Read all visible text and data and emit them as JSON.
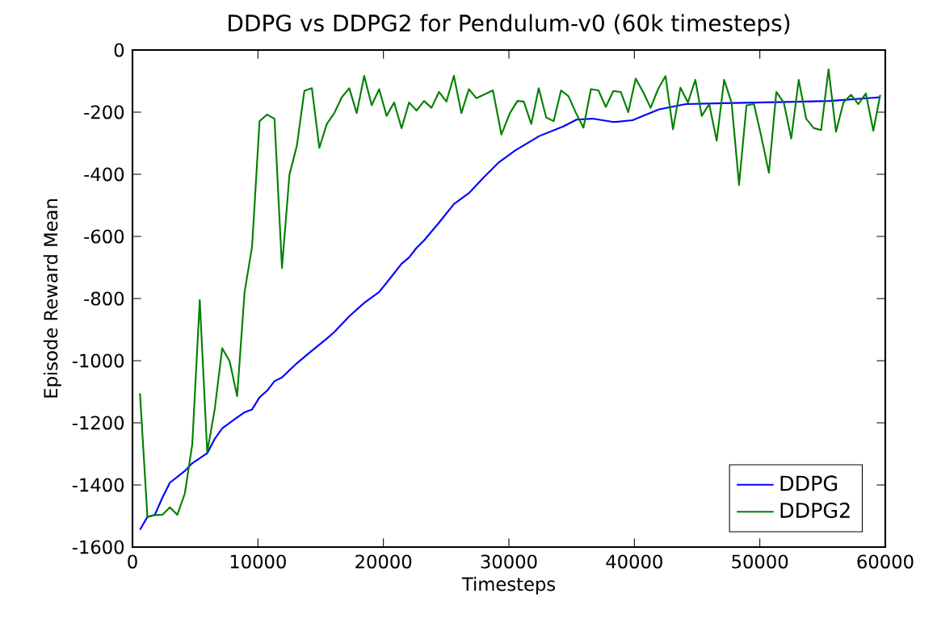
{
  "chart_data": {
    "type": "line",
    "title": "DDPG vs DDPG2 for Pendulum-v0 (60k timesteps)",
    "xlabel": "Timesteps",
    "ylabel": "Episode Reward Mean",
    "xlim": [
      0,
      60000
    ],
    "ylim": [
      -1600,
      0
    ],
    "xticks": [
      0,
      10000,
      20000,
      30000,
      40000,
      50000,
      60000
    ],
    "yticks": [
      -1600,
      -1400,
      -1200,
      -1000,
      -800,
      -600,
      -400,
      -200,
      0
    ],
    "grid": false,
    "legend": "bottom right",
    "line_style": "solid",
    "marker": "none",
    "series": [
      {
        "name": "DDPG",
        "color": "#0000ff",
        "x": [
          596,
          1191,
          1787,
          2383,
          2979,
          4170,
          4766,
          5957,
          6553,
          7149,
          8340,
          8936,
          9532,
          10128,
          10723,
          11319,
          11915,
          13106,
          14298,
          15489,
          16085,
          17277,
          18468,
          19660,
          20851,
          21447,
          22043,
          22638,
          23234,
          24426,
          25617,
          26809,
          28000,
          29191,
          30510,
          32420,
          34331,
          35393,
          36667,
          38365,
          39851,
          41975,
          44098,
          47070,
          51316,
          55563,
          59597
        ],
        "values": [
          -1544,
          -1503,
          -1496,
          -1441,
          -1393,
          -1355,
          -1330,
          -1298,
          -1252,
          -1218,
          -1183,
          -1166,
          -1157,
          -1118,
          -1097,
          -1066,
          -1054,
          -1008,
          -968,
          -929,
          -908,
          -857,
          -814,
          -779,
          -719,
          -688,
          -668,
          -637,
          -613,
          -556,
          -496,
          -461,
          -410,
          -362,
          -323,
          -277,
          -246,
          -224,
          -221,
          -232,
          -226,
          -191,
          -174,
          -171,
          -168,
          -164,
          -152
        ]
      },
      {
        "name": "DDPG2",
        "color": "#008000",
        "x": [
          596,
          1191,
          1787,
          2383,
          2979,
          3574,
          4170,
          4766,
          5362,
          5957,
          6553,
          7149,
          7745,
          8340,
          8936,
          9532,
          10128,
          10723,
          11319,
          11915,
          12511,
          13106,
          13702,
          14298,
          14894,
          15489,
          16085,
          16681,
          17277,
          17872,
          18468,
          19064,
          19660,
          20255,
          20851,
          21447,
          22043,
          22638,
          23234,
          23830,
          24426,
          25021,
          25617,
          26213,
          26809,
          27404,
          28726,
          29406,
          30085,
          30679,
          31189,
          31783,
          32378,
          32972,
          33567,
          34161,
          34756,
          35350,
          35944,
          36539,
          37134,
          37728,
          38323,
          38917,
          39511,
          40106,
          40700,
          41295,
          41890,
          42484,
          43079,
          43673,
          44268,
          44862,
          45372,
          45966,
          46561,
          47155,
          47749,
          48344,
          48938,
          49533,
          50127,
          50722,
          51316,
          51911,
          52505,
          53100,
          53694,
          54289,
          54883,
          55478,
          56072,
          56666,
          57261,
          57856,
          58450,
          59045,
          59597
        ],
        "values": [
          -1105,
          -1503,
          -1497,
          -1496,
          -1472,
          -1496,
          -1428,
          -1269,
          -805,
          -1295,
          -1157,
          -960,
          -1002,
          -1114,
          -779,
          -633,
          -229,
          -208,
          -221,
          -702,
          -401,
          -307,
          -131,
          -123,
          -315,
          -238,
          -203,
          -152,
          -123,
          -203,
          -83,
          -178,
          -126,
          -212,
          -169,
          -252,
          -169,
          -195,
          -164,
          -186,
          -135,
          -166,
          -83,
          -203,
          -126,
          -155,
          -130,
          -272,
          -203,
          -164,
          -166,
          -238,
          -123,
          -217,
          -229,
          -130,
          -149,
          -203,
          -250,
          -126,
          -130,
          -183,
          -132,
          -135,
          -200,
          -92,
          -135,
          -186,
          -126,
          -84,
          -255,
          -121,
          -169,
          -96,
          -212,
          -174,
          -292,
          -96,
          -169,
          -434,
          -178,
          -174,
          -280,
          -395,
          -135,
          -169,
          -285,
          -96,
          -221,
          -251,
          -258,
          -62,
          -263,
          -169,
          -144,
          -174,
          -140,
          -260,
          -144
        ]
      }
    ]
  }
}
